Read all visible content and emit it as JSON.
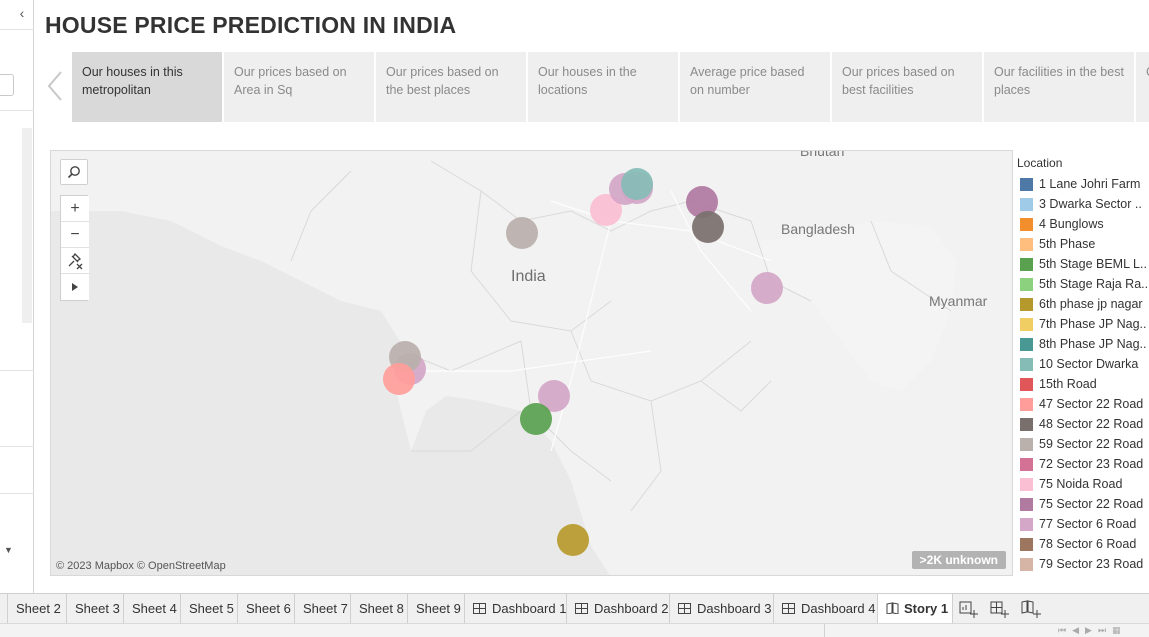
{
  "title": "HOUSE PRICE PREDICTION IN INDIA",
  "story_points": [
    {
      "label": "Our houses in this metropolitan",
      "active": true
    },
    {
      "label": "Our prices based on Area in Sq",
      "active": false
    },
    {
      "label": "Our prices based on the best places",
      "active": false
    },
    {
      "label": "Our houses in the locations",
      "active": false
    },
    {
      "label": "Average price based on number",
      "active": false
    },
    {
      "label": "Our prices based on best facilities",
      "active": false
    },
    {
      "label": "Our  facilities in the best places",
      "active": false
    },
    {
      "label": "C i",
      "active": false
    }
  ],
  "map": {
    "labels": {
      "bhutan": "Bhutan",
      "bangladesh": "Bangladesh",
      "india": "India",
      "myanmar": "Myanmar"
    },
    "attribution": "© 2023 Mapbox © OpenStreetMap",
    "unknown_badge": ">2K unknown"
  },
  "legend": {
    "title": "Location",
    "items": [
      {
        "label": "1 Lane Johri Farm",
        "color": "#4e79a7"
      },
      {
        "label": "3 Dwarka Sector ..",
        "color": "#a0cbe8"
      },
      {
        "label": "4 Bunglows",
        "color": "#f28e2b"
      },
      {
        "label": "5th Phase",
        "color": "#ffbe7d"
      },
      {
        "label": "5th Stage BEML L..",
        "color": "#59a14f"
      },
      {
        "label": "5th Stage Raja Ra..",
        "color": "#8cd17d"
      },
      {
        "label": "6th phase jp nagar",
        "color": "#b6992d"
      },
      {
        "label": "7th Phase JP Nag..",
        "color": "#f1ce63"
      },
      {
        "label": "8th Phase JP Nag..",
        "color": "#499894"
      },
      {
        "label": "10 Sector Dwarka",
        "color": "#86bcb6"
      },
      {
        "label": "15th Road",
        "color": "#e15759"
      },
      {
        "label": "47 Sector 22 Road",
        "color": "#ff9d9a"
      },
      {
        "label": "48 Sector 22 Road",
        "color": "#79706e"
      },
      {
        "label": "59 Sector 22 Road",
        "color": "#bab0ac"
      },
      {
        "label": "72 Sector 23 Road",
        "color": "#d37295"
      },
      {
        "label": "75 Noida Road",
        "color": "#fabfd2"
      },
      {
        "label": "75 Sector 22 Road",
        "color": "#b07aa1"
      },
      {
        "label": "77 Sector 6 Road",
        "color": "#d4a6c8"
      },
      {
        "label": "78 Sector 6 Road",
        "color": "#9d7660"
      },
      {
        "label": "79 Sector 23 Road",
        "color": "#d7b5a6"
      }
    ]
  },
  "tabs": [
    {
      "label": "Sheet 2",
      "type": "sheet"
    },
    {
      "label": "Sheet 3",
      "type": "sheet"
    },
    {
      "label": "Sheet 4",
      "type": "sheet"
    },
    {
      "label": "Sheet 5",
      "type": "sheet"
    },
    {
      "label": "Sheet 6",
      "type": "sheet"
    },
    {
      "label": "Sheet 7",
      "type": "sheet"
    },
    {
      "label": "Sheet 8",
      "type": "sheet"
    },
    {
      "label": "Sheet 9",
      "type": "sheet"
    },
    {
      "label": "Dashboard 1",
      "type": "dashboard"
    },
    {
      "label": "Dashboard 2",
      "type": "dashboard"
    },
    {
      "label": "Dashboard 3",
      "type": "dashboard"
    },
    {
      "label": "Dashboard 4",
      "type": "dashboard"
    },
    {
      "label": "Story 1",
      "type": "story",
      "active": true
    }
  ],
  "tab_actions": [
    "new-worksheet-icon",
    "new-dashboard-icon",
    "new-story-icon"
  ]
}
